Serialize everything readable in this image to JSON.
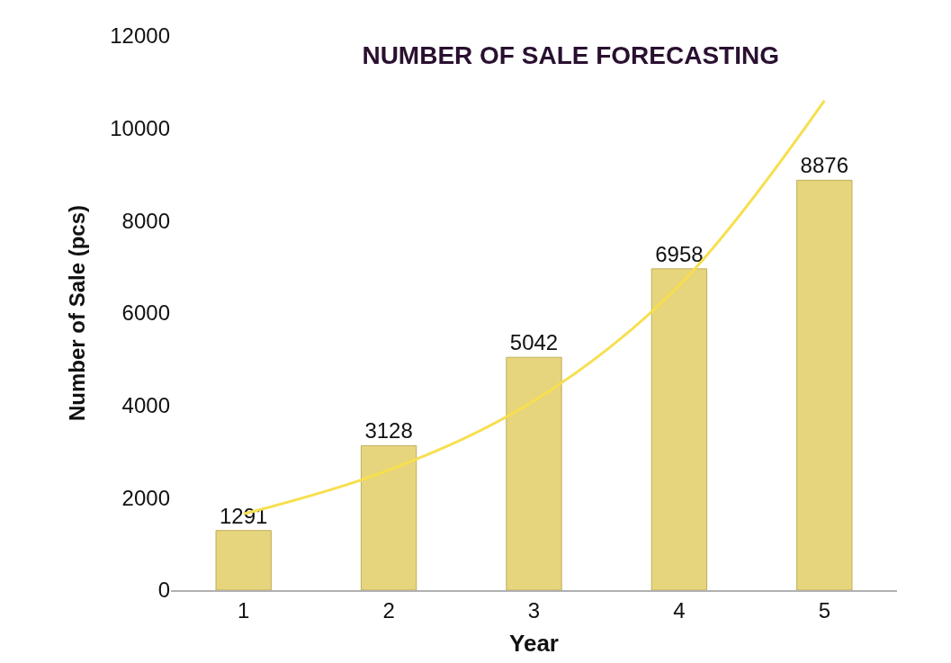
{
  "chart_data": {
    "type": "bar",
    "title": "NUMBER OF SALE FORECASTING",
    "xlabel": "Year",
    "ylabel": "Number of Sale (pcs)",
    "categories": [
      "1",
      "2",
      "3",
      "4",
      "5"
    ],
    "series": [
      {
        "color": "#e6d57c",
        "values": [
          1291,
          3128,
          5042,
          6958,
          8876
        ],
        "value_labels": [
          "1291",
          "3128",
          "5042",
          "6958",
          "8876"
        ]
      },
      {
        "type": "line",
        "color": "#f7df4f",
        "x": [
          "1",
          "2",
          "3",
          "4",
          "5"
        ],
        "values": [
          1650,
          2600,
          4100,
          6600,
          10600
        ]
      }
    ],
    "ylim": [
      0,
      12000
    ],
    "yticks": [
      0,
      2000,
      4000,
      6000,
      8000,
      10000,
      12000
    ]
  }
}
